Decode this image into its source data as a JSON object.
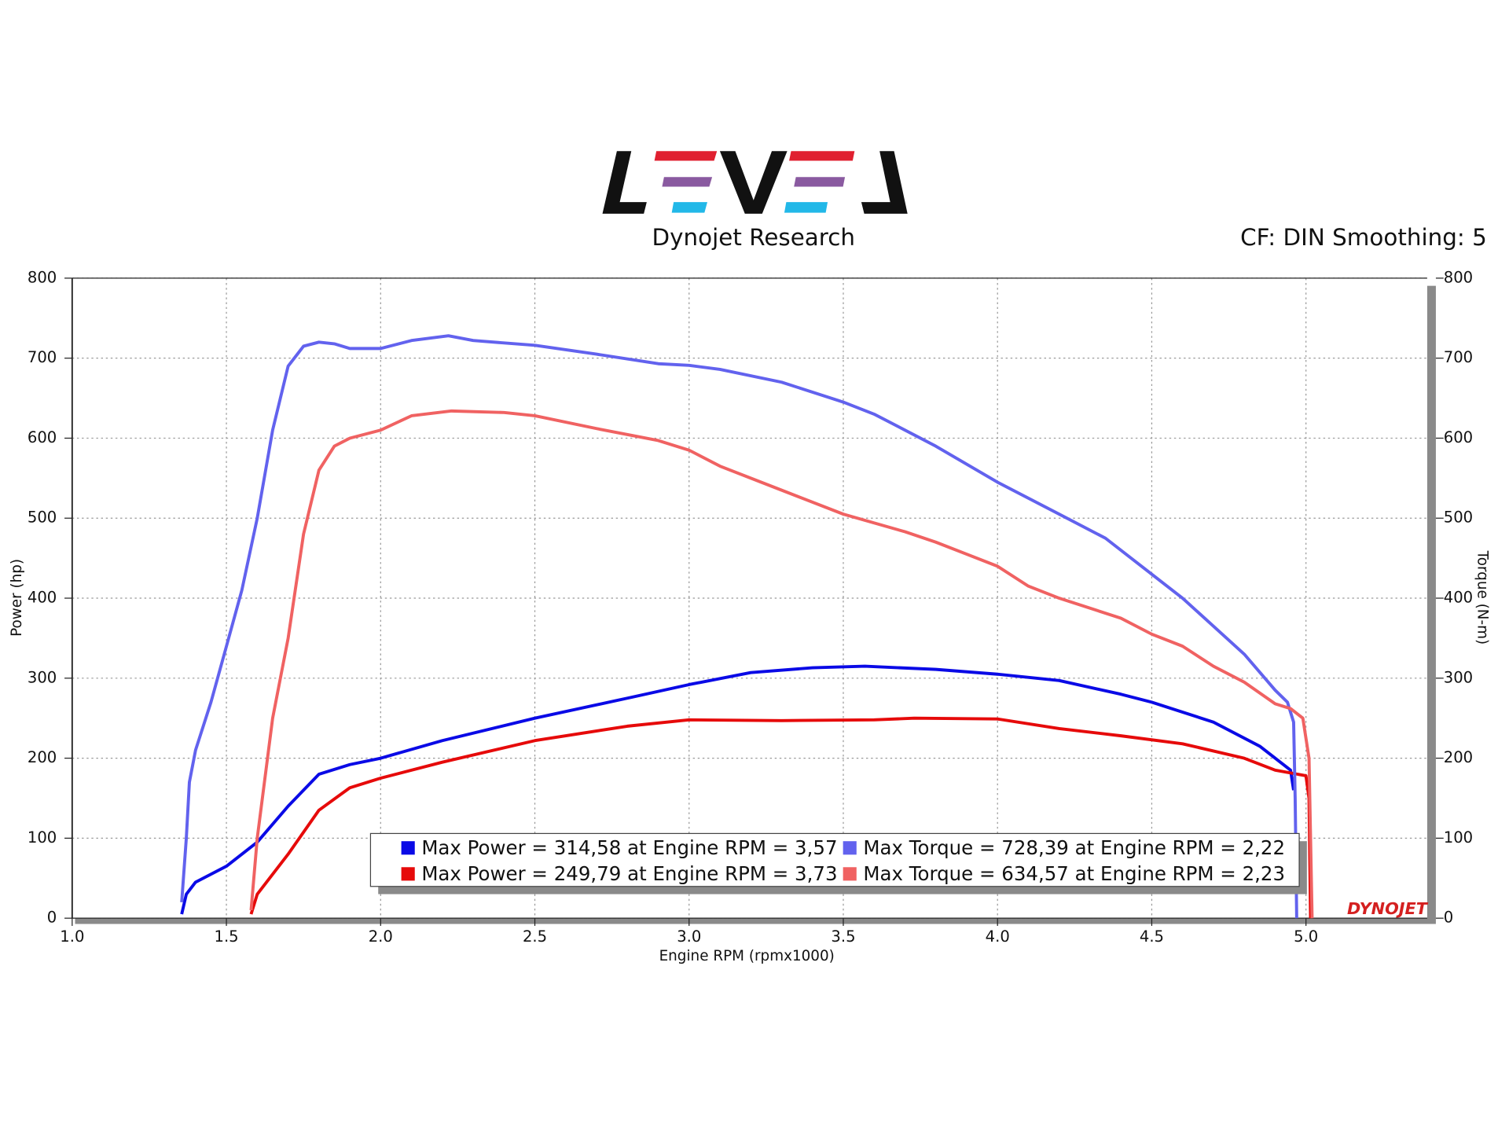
{
  "chart_data": {
    "type": "line",
    "header": "Dynojet Research",
    "settings": "CF: DIN Smoothing: 5",
    "watermark": "DYNOJET",
    "xlabel": "Engine RPM (rpmx1000)",
    "ylabel": "Power (hp)",
    "y2label": "Torque (N-m)",
    "xlim": [
      1.0,
      5.393
    ],
    "xticks": [
      {
        "value": 1,
        "label": "1.0"
      },
      1.5,
      {
        "value": 2,
        "label": "2.0"
      },
      2.5,
      {
        "value": 3,
        "label": "3.0"
      },
      3.5,
      {
        "value": 4,
        "label": "4.0"
      },
      4.5,
      {
        "value": 5,
        "label": "5.0"
      }
    ],
    "ylim": [
      0,
      800
    ],
    "yticks": [
      0,
      100,
      200,
      300,
      400,
      500,
      600,
      700,
      800
    ],
    "y2lim": [
      0,
      800
    ],
    "y2ticks": [
      0,
      100,
      200,
      300,
      400,
      500,
      600,
      700,
      800
    ],
    "grid": true,
    "series": [
      {
        "name": "Max Power = 314,58 at Engine RPM = 3,57",
        "color": "#0a0ae6",
        "x": [
          1.355,
          1.37,
          1.4,
          1.5,
          1.6,
          1.7,
          1.8,
          1.9,
          2.0,
          2.2,
          2.5,
          2.8,
          3.0,
          3.2,
          3.4,
          3.57,
          3.8,
          4.0,
          4.2,
          4.4,
          4.5,
          4.7,
          4.85,
          4.95,
          4.96
        ],
        "values": [
          5,
          30,
          45,
          65,
          95,
          140,
          180,
          192,
          200,
          222,
          250,
          275,
          292,
          307,
          313,
          315,
          311,
          305,
          297,
          280,
          270,
          245,
          215,
          185,
          160
        ]
      },
      {
        "name": "Max Power = 249,79 at Engine RPM = 3,73",
        "color": "#e60a0a",
        "x": [
          1.58,
          1.6,
          1.7,
          1.8,
          1.9,
          2.0,
          2.2,
          2.5,
          2.8,
          3.0,
          3.3,
          3.6,
          3.73,
          4.0,
          4.2,
          4.4,
          4.6,
          4.8,
          4.9,
          5.0,
          5.01,
          5.015
        ],
        "values": [
          5,
          30,
          80,
          135,
          163,
          175,
          195,
          222,
          240,
          248,
          247,
          248,
          250,
          249,
          237,
          228,
          218,
          200,
          185,
          178,
          150,
          0
        ]
      },
      {
        "name": "Max Torque = 728,39 at Engine RPM = 2,22",
        "color": "#6262ee",
        "axis": "y2",
        "x": [
          1.355,
          1.37,
          1.38,
          1.4,
          1.45,
          1.5,
          1.55,
          1.6,
          1.65,
          1.7,
          1.75,
          1.8,
          1.85,
          1.9,
          2.0,
          2.1,
          2.22,
          2.3,
          2.5,
          2.7,
          2.9,
          3.0,
          3.1,
          3.3,
          3.5,
          3.6,
          3.7,
          3.8,
          4.0,
          4.2,
          4.35,
          4.5,
          4.6,
          4.7,
          4.8,
          4.9,
          4.94,
          4.96,
          4.965,
          4.97
        ],
        "values": [
          20,
          100,
          170,
          210,
          270,
          340,
          410,
          500,
          610,
          690,
          715,
          720,
          718,
          712,
          712,
          722,
          728,
          722,
          716,
          705,
          693,
          691,
          686,
          670,
          645,
          630,
          610,
          590,
          545,
          505,
          475,
          430,
          400,
          365,
          330,
          285,
          270,
          245,
          150,
          0
        ]
      },
      {
        "name": "Max Torque = 634,57 at Engine RPM = 2,23",
        "color": "#f06262",
        "axis": "y2",
        "x": [
          1.58,
          1.6,
          1.65,
          1.7,
          1.75,
          1.8,
          1.85,
          1.9,
          2.0,
          2.1,
          2.23,
          2.4,
          2.5,
          2.7,
          2.9,
          3.0,
          3.1,
          3.3,
          3.5,
          3.7,
          3.8,
          3.9,
          4.0,
          4.1,
          4.2,
          4.4,
          4.5,
          4.6,
          4.7,
          4.8,
          4.9,
          4.95,
          4.99,
          5.01,
          5.015,
          5.02
        ],
        "values": [
          10,
          100,
          250,
          350,
          480,
          560,
          590,
          600,
          610,
          628,
          634,
          632,
          628,
          612,
          597,
          585,
          565,
          535,
          505,
          483,
          470,
          455,
          440,
          415,
          400,
          375,
          355,
          340,
          315,
          295,
          268,
          262,
          250,
          200,
          100,
          0
        ]
      }
    ]
  }
}
